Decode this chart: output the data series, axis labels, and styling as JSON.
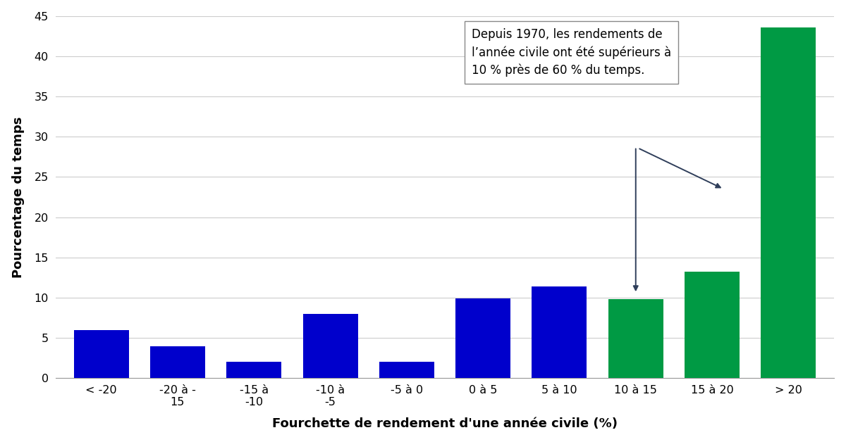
{
  "categories": [
    "< -20",
    "-20 à -\n15",
    "-15 à\n-10",
    "-10 à\n-5",
    "-5 à 0",
    "0 à 5",
    "5 à 10",
    "10 à 15",
    "15 à 20",
    "> 20"
  ],
  "values": [
    6.0,
    4.0,
    2.0,
    8.0,
    2.0,
    9.9,
    11.4,
    9.8,
    13.2,
    43.6
  ],
  "colors": [
    "#0000CC",
    "#0000CC",
    "#0000CC",
    "#0000CC",
    "#0000CC",
    "#0000CC",
    "#0000CC",
    "#009A44",
    "#009A44",
    "#009A44"
  ],
  "ylabel": "Pourcentage du temps",
  "xlabel": "Fourchette de rendement d'une année civile (%)",
  "ylim": [
    0,
    45
  ],
  "yticks": [
    0,
    5,
    10,
    15,
    20,
    25,
    30,
    35,
    40,
    45
  ],
  "annotation_text": "Depuis 1970, les rendements de\nl’année civile ont été supérieurs à\n10 % près de 60 % du temps.",
  "background_color": "#FFFFFF",
  "bar_edge_color": "none",
  "grid_color": "#CCCCCC",
  "arrow_color": "#2F3E5A"
}
